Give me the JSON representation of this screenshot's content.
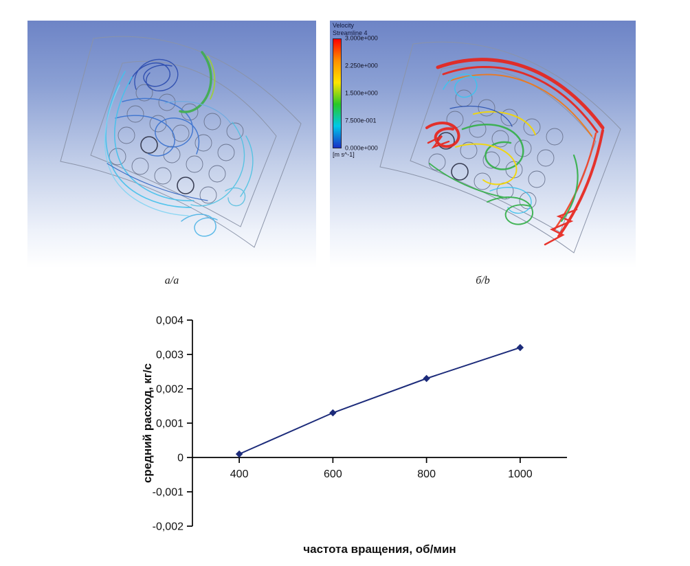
{
  "figure": {
    "panel_a_label": "а/a",
    "panel_b_label": "б/b"
  },
  "legend": {
    "title_line1": "Velocity",
    "title_line2": "Streamline 4",
    "ticks": [
      "3.000e+000",
      "2.250e+000",
      "1.500e+000",
      "7.500e-001",
      "0.000e+000"
    ],
    "units": "[m s^-1]",
    "colors": [
      "#ff0000",
      "#ff9000",
      "#ffe400",
      "#28c828",
      "#00c8e8",
      "#1830c8"
    ]
  },
  "chart_data": {
    "type": "line",
    "title": "",
    "xlabel": "частота вращения, об/мин",
    "ylabel": "средний расход, кг/с",
    "x": [
      400,
      600,
      800,
      1000
    ],
    "y": [
      0.0001,
      0.0013,
      0.0023,
      0.0032
    ],
    "xlim": [
      300,
      1100
    ],
    "ylim": [
      -0.002,
      0.004
    ],
    "x_ticks": [
      400,
      600,
      800,
      1000
    ],
    "x_tick_labels": [
      "400",
      "600",
      "800",
      "1000"
    ],
    "y_ticks": [
      -0.002,
      -0.001,
      0,
      0.001,
      0.002,
      0.003,
      0.004
    ],
    "y_tick_labels": [
      "-0,002",
      "-0,001",
      "0",
      "0,001",
      "0,002",
      "0,003",
      "0,004"
    ],
    "line_color": "#1c2b7a",
    "marker": "diamond",
    "marker_color": "#1c2b7a",
    "grid": false,
    "legend_position": "none"
  }
}
